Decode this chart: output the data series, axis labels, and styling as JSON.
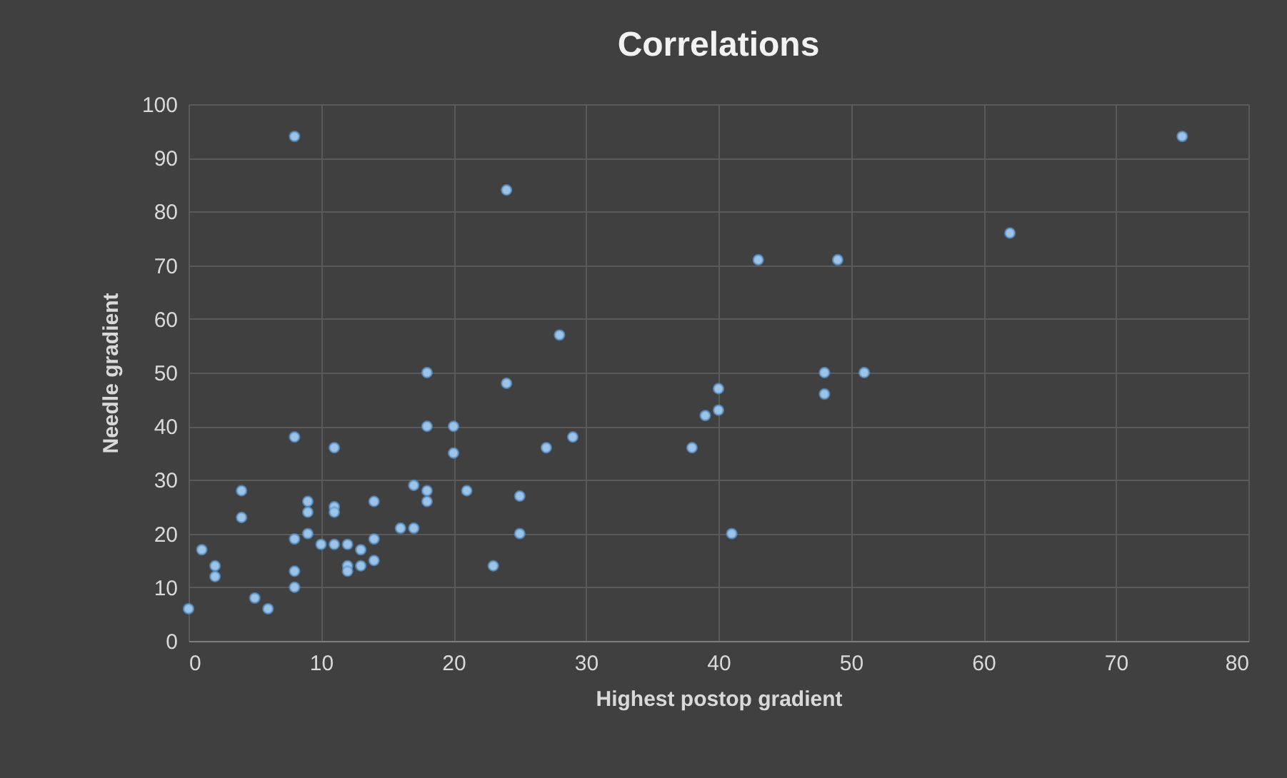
{
  "chart_data": {
    "type": "scatter",
    "title": "Correlations",
    "xlabel": "Highest postop gradient",
    "ylabel": "Needle gradient",
    "xlim": [
      0,
      80
    ],
    "xticks": [
      0,
      10,
      20,
      30,
      40,
      50,
      60,
      70,
      80
    ],
    "ylim": [
      0,
      100
    ],
    "yticks": [
      0,
      10,
      20,
      30,
      40,
      50,
      60,
      70,
      80,
      90,
      100
    ],
    "grid": true,
    "marker": "circle",
    "series": [
      {
        "color": "#9dc3e6",
        "x": [
          0,
          1,
          2,
          2,
          4,
          4,
          5,
          6,
          8,
          8,
          8,
          8,
          8,
          9,
          9,
          9,
          10,
          11,
          11,
          11,
          11,
          12,
          12,
          12,
          13,
          13,
          14,
          14,
          14,
          16,
          17,
          17,
          18,
          18,
          18,
          18,
          20,
          20,
          21,
          23,
          24,
          24,
          25,
          25,
          27,
          28,
          29,
          38,
          39,
          40,
          40,
          41,
          43,
          48,
          48,
          49,
          51,
          62,
          75
        ],
        "values": [
          6,
          17,
          14,
          12,
          28,
          23,
          8,
          6,
          94,
          38,
          19,
          13,
          10,
          26,
          24,
          20,
          18,
          36,
          25,
          24,
          18,
          18,
          14,
          13,
          17,
          14,
          26,
          19,
          15,
          21,
          29,
          21,
          50,
          40,
          28,
          26,
          40,
          35,
          28,
          14,
          84,
          48,
          27,
          20,
          36,
          57,
          38,
          36,
          42,
          47,
          43,
          20,
          71,
          50,
          46,
          71,
          50,
          76,
          94
        ]
      }
    ]
  }
}
